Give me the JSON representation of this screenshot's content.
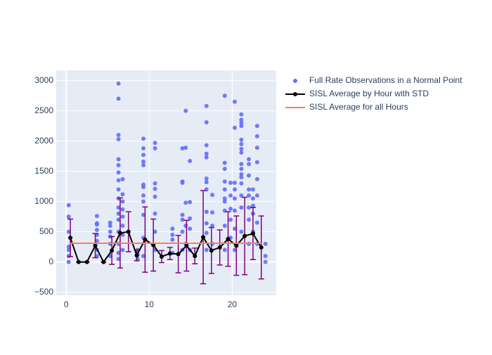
{
  "chart_data": {
    "type": "scatter-line",
    "xlim": [
      -1.2,
      25.3
    ],
    "xticks": [
      0,
      10,
      20
    ],
    "ylim": [
      -550,
      3170
    ],
    "yticks": [
      {
        "value": -500,
        "label": "−500"
      },
      0,
      500,
      1000,
      1500,
      2000,
      2500,
      3000
    ],
    "grid": true,
    "legend": "right",
    "series": [
      {
        "name": "Full Rate Observations in a Normal Point",
        "color": "#636efa",
        "mode": "markers",
        "x": [
          0.3,
          0.3,
          0.3,
          0.3,
          0.3,
          0.3,
          0.3,
          3.7,
          3.7,
          3.7,
          3.7,
          3.7,
          3.7,
          3.7,
          3.7,
          5.3,
          5.3,
          5.3,
          5.3,
          5.3,
          5.3,
          6.3,
          6.3,
          6.3,
          6.3,
          6.3,
          6.3,
          6.3,
          6.3,
          6.3,
          6.3,
          6.3,
          6.3,
          6.3,
          6.3,
          6.3,
          6.3,
          6.3,
          6.8,
          6.8,
          6.8,
          6.8,
          6.8,
          6.8,
          6.8,
          6.8,
          8.6,
          8.6,
          8.6,
          9.3,
          9.3,
          9.3,
          9.3,
          9.3,
          9.3,
          9.3,
          9.3,
          9.3,
          9.3,
          9.3,
          9.3,
          10.7,
          10.7,
          10.7,
          10.7,
          10.7,
          10.7,
          10.7,
          10.7,
          12.8,
          12.8,
          12.8,
          12.8,
          14.0,
          14.0,
          14.0,
          14.0,
          14.0,
          14.0,
          14.0,
          14.4,
          14.4,
          14.4,
          14.4,
          14.4,
          14.9,
          14.9,
          14.9,
          14.9,
          14.9,
          16.9,
          16.9,
          16.9,
          16.9,
          16.9,
          16.9,
          16.9,
          16.9,
          16.9,
          16.9,
          16.9,
          16.9,
          17.6,
          17.6,
          17.6,
          17.6,
          19.1,
          19.1,
          19.1,
          19.1,
          19.1,
          19.1,
          19.1,
          19.1,
          19.1,
          19.1,
          19.8,
          19.8,
          19.8,
          19.8,
          19.8,
          20.3,
          20.3,
          20.3,
          20.3,
          20.3,
          20.3,
          20.3,
          20.3,
          21.1,
          21.1,
          21.1,
          21.1,
          21.1,
          21.1,
          21.1,
          21.1,
          21.1,
          21.1,
          21.1,
          21.1,
          21.1,
          21.1,
          21.1,
          21.1,
          22.0,
          22.0,
          22.0,
          22.0,
          22.0,
          22.0,
          22.0,
          22.0,
          22.5,
          22.5,
          22.5,
          22.5,
          22.5,
          23.0,
          23.0,
          23.0,
          23.0,
          23.0,
          23.0,
          23.0,
          23.0,
          24.0,
          24.0,
          24.0
        ],
        "values": [
          940,
          750,
          500,
          250,
          200,
          100,
          0,
          760,
          640,
          620,
          530,
          450,
          350,
          200,
          100,
          650,
          600,
          500,
          420,
          300,
          100,
          2950,
          2700,
          2100,
          2030,
          1700,
          1600,
          1480,
          1350,
          1200,
          1050,
          900,
          800,
          700,
          500,
          300,
          150,
          50,
          1370,
          1120,
          1000,
          870,
          750,
          600,
          450,
          200,
          200,
          120,
          50,
          2040,
          1880,
          1770,
          1660,
          1600,
          1280,
          1240,
          1100,
          1000,
          780,
          400,
          100,
          1970,
          1880,
          1300,
          1210,
          1080,
          800,
          500,
          200,
          550,
          450,
          370,
          150,
          1880,
          1330,
          1310,
          780,
          700,
          500,
          200,
          2500,
          1890,
          980,
          600,
          300,
          1670,
          990,
          720,
          550,
          200,
          2580,
          2310,
          1930,
          1790,
          1730,
          1380,
          1320,
          1200,
          830,
          640,
          480,
          200,
          1110,
          820,
          600,
          300,
          2750,
          1640,
          1540,
          1330,
          1200,
          1050,
          1000,
          850,
          600,
          200,
          1310,
          1100,
          880,
          700,
          400,
          2650,
          2220,
          1310,
          1200,
          1050,
          850,
          550,
          200,
          2440,
          2350,
          2300,
          2250,
          2020,
          1950,
          1870,
          1810,
          1620,
          1540,
          1450,
          1400,
          1300,
          1100,
          900,
          500,
          1700,
          1620,
          1430,
          1200,
          1100,
          900,
          700,
          300,
          1200,
          1050,
          930,
          800,
          500,
          2250,
          2080,
          1890,
          1650,
          1370,
          1100,
          650,
          300,
          300,
          100,
          0
        ]
      },
      {
        "name": "SISL Average by Hour with STD",
        "color": "#000000",
        "error_color": "#800080",
        "mode": "lines+markers",
        "x": [
          0.5,
          1.5,
          2.5,
          3.5,
          4.5,
          5.5,
          6.5,
          7.5,
          8.5,
          9.5,
          10.5,
          11.5,
          12.5,
          13.5,
          14.5,
          15.5,
          16.5,
          17.5,
          18.5,
          19.5,
          20.5,
          21.5,
          22.5,
          23.5
        ],
        "values": [
          400,
          0,
          0,
          270,
          0,
          190,
          480,
          500,
          110,
          370,
          280,
          90,
          140,
          130,
          270,
          100,
          410,
          190,
          240,
          380,
          270,
          430,
          470,
          240
        ],
        "errors": [
          310,
          0,
          0,
          200,
          0,
          230,
          580,
          330,
          90,
          540,
          430,
          100,
          100,
          310,
          420,
          130,
          770,
          380,
          290,
          450,
          490,
          640,
          430,
          520
        ]
      },
      {
        "name": "SISL Average for all Hours",
        "color": "#ff7f50",
        "mode": "lines",
        "x": [
          0.5,
          23.5
        ],
        "values": [
          310,
          310
        ]
      }
    ]
  }
}
